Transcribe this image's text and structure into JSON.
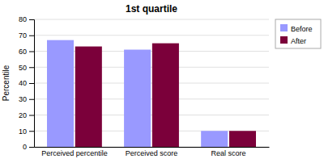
{
  "chart_data": {
    "type": "bar",
    "title": "1st quartile",
    "categories": [
      "Perceived percentile",
      "Perceived score",
      "Real score"
    ],
    "series": [
      {
        "name": "Before",
        "color": "#9999FF",
        "values": [
          67,
          61,
          10
        ]
      },
      {
        "name": "After",
        "color": "#7B003A",
        "values": [
          63,
          65,
          10
        ]
      }
    ],
    "ylabel": "Percentile",
    "ylim": [
      0,
      80
    ],
    "yticks": [
      0,
      10,
      20,
      30,
      40,
      50,
      60,
      70,
      80
    ],
    "grid": true,
    "legend": "right"
  }
}
